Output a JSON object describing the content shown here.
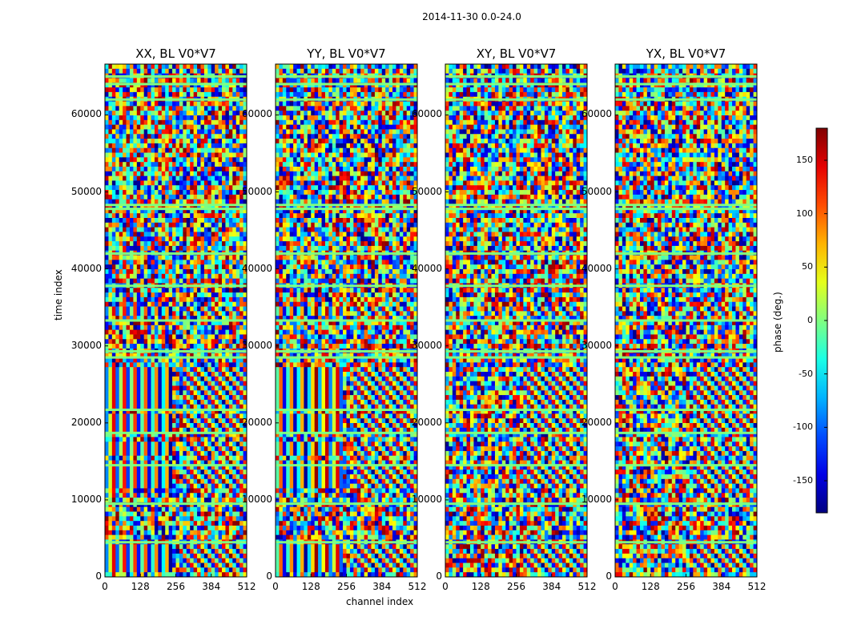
{
  "chart_data": {
    "type": "heatmap",
    "suptitle": "2014-11-30 0.0-24.0",
    "panels": [
      {
        "title": "XX, BL V0*V7",
        "seed": 11
      },
      {
        "title": "YY, BL V0*V7",
        "seed": 23
      },
      {
        "title": "XY, BL V0*V7",
        "seed": 37
      },
      {
        "title": "YX, BL V0*V7",
        "seed": 51
      }
    ],
    "xlabel": "channel index",
    "ylabel": "time index",
    "xlim": [
      0,
      512
    ],
    "ylim": [
      0,
      66600
    ],
    "xticks": [
      0,
      128,
      256,
      384,
      512
    ],
    "yticks": [
      0,
      10000,
      20000,
      30000,
      40000,
      50000,
      60000
    ],
    "colorbar": {
      "label": "phase (deg.)",
      "range": [
        -180,
        180
      ],
      "ticks": [
        150,
        100,
        50,
        0,
        -50,
        -100,
        -150
      ],
      "colormap": "jet"
    },
    "features": {
      "flag_lines_time": [
        4500,
        9500,
        14500,
        18700,
        21700,
        28500,
        29300,
        33300,
        37800,
        42000,
        47800,
        48300,
        62000,
        64000,
        65000
      ],
      "fringe_band_time": [
        [
          600,
          4200
        ],
        [
          10100,
          10900
        ],
        [
          11500,
          14000
        ],
        [
          14100,
          15000
        ],
        [
          16000,
          17500
        ],
        [
          19000,
          21300
        ],
        [
          22000,
          27000
        ],
        [
          34000,
          35200
        ],
        [
          41500,
          42400
        ],
        [
          65600,
          66200
        ]
      ]
    }
  }
}
